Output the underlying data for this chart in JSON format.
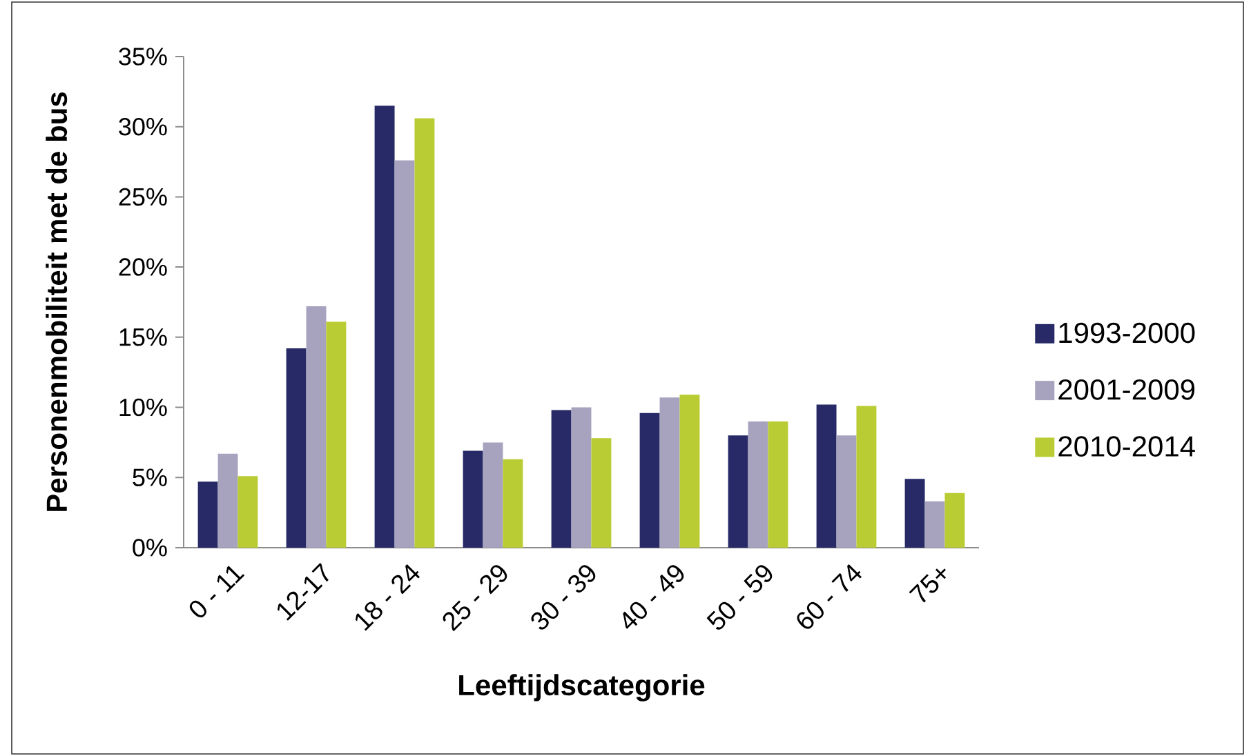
{
  "chart_data": {
    "type": "bar",
    "ylabel": "Personenmobiliteit met de bus",
    "xlabel": "Leeftijdscategorie",
    "categories": [
      "0 - 11",
      "12-17",
      "18 - 24",
      "25 - 29",
      "30 - 39",
      "40 - 49",
      "50 - 59",
      "60 - 74",
      "75+"
    ],
    "series": [
      {
        "name": "1993-2000",
        "color": "#272a66",
        "values": [
          4.7,
          14.2,
          31.5,
          6.9,
          9.8,
          9.6,
          8.0,
          10.2,
          4.9
        ]
      },
      {
        "name": "2001-2009",
        "color": "#a7a3bf",
        "values": [
          6.7,
          17.2,
          27.6,
          7.5,
          10.0,
          10.7,
          9.0,
          8.0,
          3.3
        ]
      },
      {
        "name": "2010-2014",
        "color": "#b9cc33",
        "values": [
          5.1,
          16.1,
          30.6,
          6.3,
          7.8,
          10.9,
          9.0,
          10.1,
          3.9
        ]
      }
    ],
    "ylim": [
      0,
      35
    ],
    "yticks": [
      {
        "value": 0,
        "label": "0%"
      },
      {
        "value": 5,
        "label": "5%"
      },
      {
        "value": 10,
        "label": "10%"
      },
      {
        "value": 15,
        "label": "15%"
      },
      {
        "value": 20,
        "label": "20%"
      },
      {
        "value": 25,
        "label": "25%"
      },
      {
        "value": 30,
        "label": "30%"
      },
      {
        "value": 35,
        "label": "35%"
      }
    ],
    "legend": "right"
  }
}
